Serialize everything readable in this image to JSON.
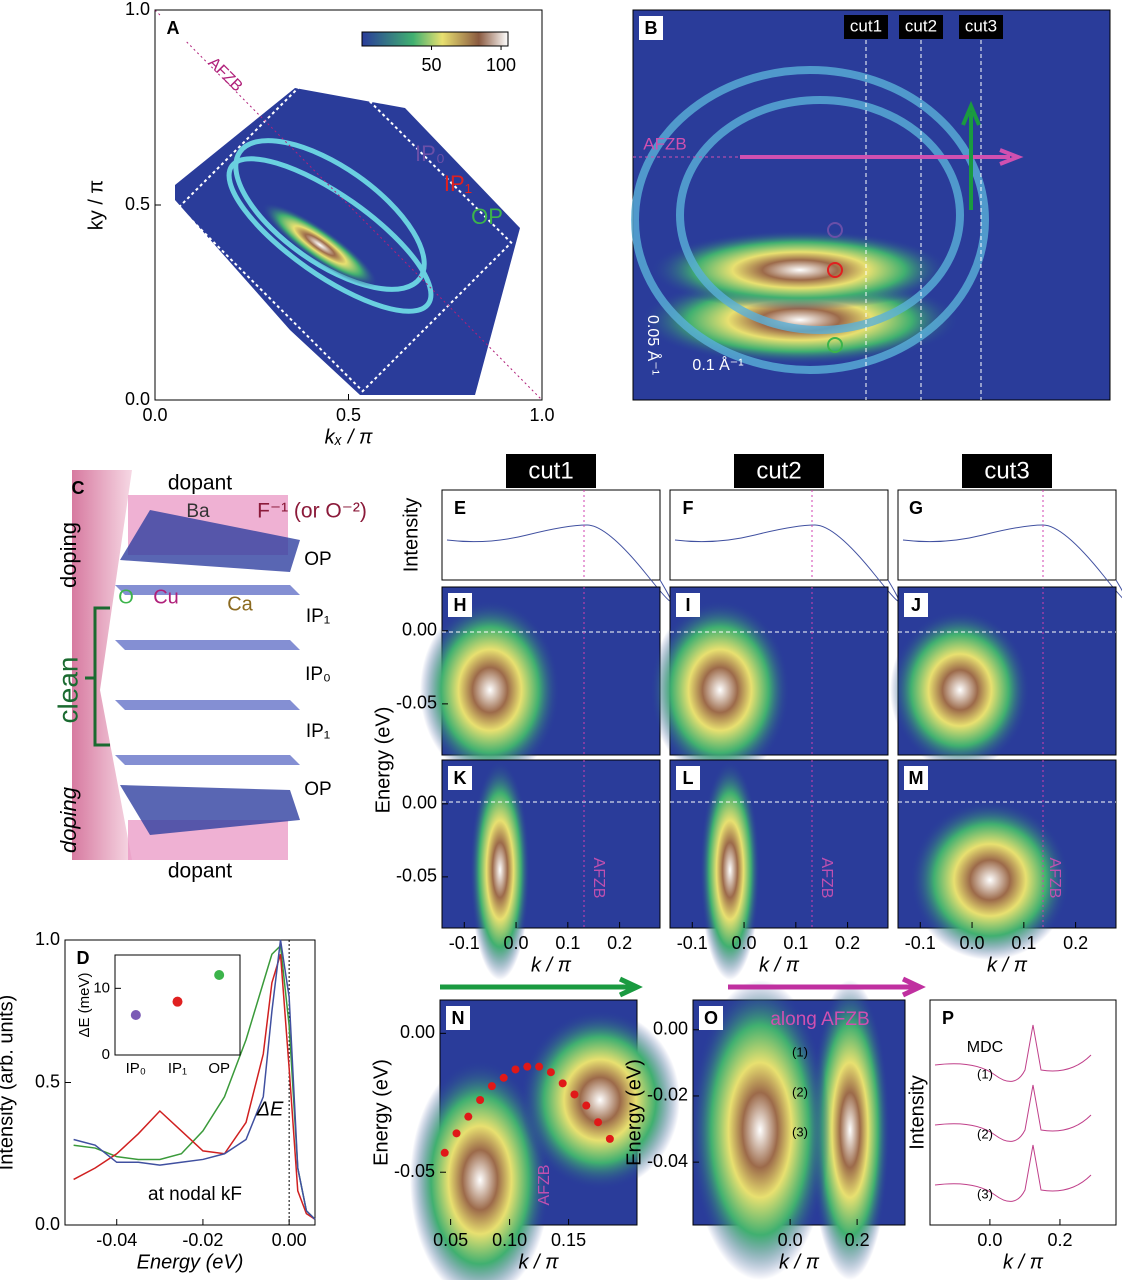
{
  "chart_data": [
    {
      "type": "image",
      "label": "A",
      "xlim": [
        0,
        1
      ],
      "ylim": [
        0,
        1
      ],
      "xticks": [
        {
          "value": 0,
          "label": "0.0"
        },
        {
          "value": 0.5,
          "label": "0.5"
        },
        {
          "value": 1,
          "label": "1.0"
        }
      ],
      "yticks": [
        {
          "value": 0,
          "label": "0.0"
        },
        {
          "value": 0.5,
          "label": "0.5"
        },
        {
          "value": 1,
          "label": "1.0"
        }
      ],
      "xlabel": "kₓ / π",
      "ylabel": "ky / π",
      "annotations": [
        "AFZB",
        "IP₀",
        "IP₁",
        "OP"
      ],
      "colorbar_lim": [
        0,
        105
      ],
      "colorbar_ticks": [
        50,
        100
      ]
    },
    {
      "type": "image",
      "label": "B",
      "annotations": [
        "cut1",
        "cut2",
        "cut3",
        "AFZB",
        "0.05 Å⁻¹",
        "0.1 Å⁻¹"
      ]
    },
    {
      "type": "diagram",
      "label": "C",
      "annotations": [
        "dopant",
        "Ba",
        "F⁻¹ (or O⁻²)",
        "OP",
        "O",
        "Cu",
        "Ca",
        "IP₁",
        "IP₀",
        "IP₁",
        "OP",
        "dopant",
        "doping",
        "clean",
        "doping"
      ]
    },
    {
      "type": "line",
      "label": "D",
      "xlim": [
        -0.052,
        0.006
      ],
      "ylim": [
        0,
        1.0
      ],
      "xticks": [
        {
          "value": -0.04,
          "label": "-0.04"
        },
        {
          "value": -0.02,
          "label": "-0.02"
        },
        {
          "value": 0,
          "label": "0.00"
        }
      ],
      "yticks": [
        {
          "value": 0,
          "label": "0.0"
        },
        {
          "value": 0.5,
          "label": "0.5"
        },
        {
          "value": 1,
          "label": "1.0"
        }
      ],
      "xlabel": "Energy (eV)",
      "ylabel": "Intensity (arb. units)",
      "annotations": [
        "ΔE",
        "at nodal kF"
      ],
      "x": [
        -0.05,
        -0.045,
        -0.04,
        -0.035,
        -0.03,
        -0.025,
        -0.02,
        -0.015,
        -0.01,
        -0.006,
        -0.004,
        -0.002,
        0,
        0.002,
        0.004,
        0.006
      ],
      "series": [
        {
          "color": "#3a9a3a",
          "values": [
            0.28,
            0.27,
            0.24,
            0.23,
            0.23,
            0.25,
            0.33,
            0.45,
            0.65,
            0.85,
            0.95,
            0.98,
            0.7,
            0.2,
            0.05,
            0.02
          ]
        },
        {
          "color": "#d02020",
          "values": [
            0.16,
            0.2,
            0.25,
            0.32,
            0.4,
            0.33,
            0.26,
            0.25,
            0.36,
            0.6,
            0.85,
            0.95,
            0.55,
            0.12,
            0.04,
            0.02
          ]
        },
        {
          "color": "#4050a0",
          "values": [
            0.3,
            0.28,
            0.22,
            0.22,
            0.21,
            0.22,
            0.23,
            0.25,
            0.3,
            0.45,
            0.75,
            1.0,
            0.8,
            0.2,
            0.05,
            0.02
          ]
        }
      ]
    },
    {
      "type": "scatter",
      "categories": [
        "IP₀",
        "IP₁",
        "OP"
      ],
      "values": [
        6,
        8,
        12
      ],
      "colors": [
        "#7b5bb5",
        "#e02020",
        "#3cb44b"
      ],
      "ylim": [
        0,
        15
      ],
      "yticks": [
        0,
        10
      ],
      "ylabel": "ΔE (meV)"
    },
    {
      "type": "profile",
      "label": "E",
      "title": "cut1",
      "ylabel": "Intensity"
    },
    {
      "type": "profile",
      "label": "F",
      "title": "cut2"
    },
    {
      "type": "profile",
      "label": "G",
      "title": "cut3"
    },
    {
      "type": "image",
      "label": "H",
      "ylim": [
        -0.085,
        0.03
      ],
      "yticks": [
        {
          "value": 0,
          "label": "0.00"
        },
        {
          "value": -0.05,
          "label": "-0.05"
        }
      ],
      "ylabel": "Energy (eV)"
    },
    {
      "type": "image",
      "label": "I"
    },
    {
      "type": "image",
      "label": "J"
    },
    {
      "type": "image",
      "label": "K",
      "xlim": [
        -0.143,
        0.278
      ],
      "ylim": [
        -0.085,
        0.03
      ],
      "xticks": [
        {
          "value": -0.1,
          "label": "-0.1"
        },
        {
          "value": 0,
          "label": "0.0"
        },
        {
          "value": 0.1,
          "label": "0.1"
        },
        {
          "value": 0.2,
          "label": "0.2"
        }
      ],
      "yticks": [
        {
          "value": 0,
          "label": "0.00"
        },
        {
          "value": -0.05,
          "label": "-0.05"
        }
      ],
      "xlabel": "k / π",
      "annotations": [
        "AFZB"
      ]
    },
    {
      "type": "image",
      "label": "L",
      "xlim": [
        -0.143,
        0.278
      ],
      "xticks": [
        {
          "value": -0.1,
          "label": "-0.1"
        },
        {
          "value": 0,
          "label": "0.0"
        },
        {
          "value": 0.1,
          "label": "0.1"
        },
        {
          "value": 0.2,
          "label": "0.2"
        }
      ],
      "xlabel": "k / π",
      "annotations": [
        "AFZB"
      ]
    },
    {
      "type": "image",
      "label": "M",
      "xlim": [
        -0.143,
        0.278
      ],
      "xticks": [
        {
          "value": -0.1,
          "label": "-0.1"
        },
        {
          "value": 0,
          "label": "0.0"
        },
        {
          "value": 0.1,
          "label": "0.1"
        },
        {
          "value": 0.2,
          "label": "0.2"
        }
      ],
      "xlabel": "k / π",
      "annotations": [
        "AFZB"
      ]
    },
    {
      "type": "image",
      "label": "N",
      "xlim": [
        0.041,
        0.208
      ],
      "ylim": [
        -0.069,
        0.012
      ],
      "xticks": [
        {
          "value": 0.05,
          "label": "0.05"
        },
        {
          "value": 0.1,
          "label": "0.10"
        },
        {
          "value": 0.15,
          "label": "0.15"
        }
      ],
      "yticks": [
        {
          "value": 0,
          "label": "0.00"
        },
        {
          "value": -0.05,
          "label": "-0.05"
        }
      ],
      "xlabel": "k / π",
      "ylabel": "Energy (eV)",
      "annotations": [
        "AFZB"
      ],
      "x": [
        0.045,
        0.055,
        0.065,
        0.075,
        0.085,
        0.095,
        0.105,
        0.115,
        0.125,
        0.135,
        0.145,
        0.155,
        0.165,
        0.175,
        0.185
      ],
      "values": [
        -0.043,
        -0.036,
        -0.03,
        -0.024,
        -0.019,
        -0.016,
        -0.013,
        -0.012,
        -0.012,
        -0.014,
        -0.018,
        -0.022,
        -0.026,
        -0.032,
        -0.038
      ],
      "color": "#e01818"
    },
    {
      "type": "image",
      "label": "O",
      "xlim": [
        -0.29,
        0.343
      ],
      "ylim": [
        -0.059,
        0.009
      ],
      "xticks": [
        {
          "value": 0,
          "label": "0.0"
        },
        {
          "value": 0.2,
          "label": "0.2"
        }
      ],
      "yticks": [
        {
          "value": 0,
          "label": "0.00"
        },
        {
          "value": -0.02,
          "label": "-0.02"
        },
        {
          "value": -0.04,
          "label": "-0.04"
        }
      ],
      "xlabel": "k / π",
      "ylabel": "Energy (eV)",
      "annotations": [
        "along AFZB",
        "(1)",
        "(2)",
        "(3)"
      ]
    },
    {
      "type": "profile",
      "label": "P",
      "xlim": [
        -0.171,
        0.36
      ],
      "xticks": [
        {
          "value": 0,
          "label": "0.0"
        },
        {
          "value": 0.2,
          "label": "0.2"
        }
      ],
      "xlabel": "k / π",
      "ylabel": "Intensity",
      "annotations": [
        "MDC",
        "(1)",
        "(2)",
        "(3)"
      ]
    }
  ]
}
